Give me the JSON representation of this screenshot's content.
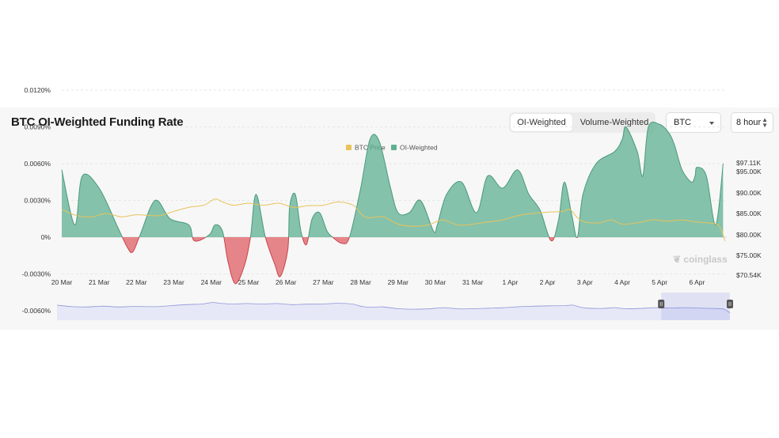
{
  "header": {
    "title": "BTC OI-Weighted Funding Rate",
    "toggle": [
      "OI-Weighted",
      "Volume-Weighted"
    ],
    "coin": "BTC",
    "interval": "8 hour"
  },
  "watermark": "coinglass",
  "colors": {
    "positive": "#5fb091",
    "negative": "#e0686d",
    "price": "#e8c35a",
    "navigator_fill": "#e6e8f7",
    "navigator_line": "#8f95d6"
  },
  "chart_data": {
    "type": "area",
    "legend": [
      {
        "name": "BTC Price",
        "color": "#e8c35a"
      },
      {
        "name": "OI-Weighted",
        "color": "#5fb091"
      }
    ],
    "x": [
      "20 Mar",
      "21 Mar",
      "22 Mar",
      "23 Mar",
      "24 Mar",
      "25 Mar",
      "26 Mar",
      "27 Mar",
      "28 Mar",
      "29 Mar",
      "30 Mar",
      "31 Mar",
      "1 Apr",
      "2 Apr",
      "3 Apr",
      "4 Apr",
      "5 Apr",
      "6 Apr"
    ],
    "y_left": {
      "ticks": [
        "0.0120%",
        "0.0090%",
        "0.0060%",
        "0.0030%",
        "0%",
        "-0.0030%",
        "-0.0060%"
      ],
      "range": [
        -0.006,
        0.012
      ],
      "unit": "%"
    },
    "y_right": {
      "ticks": [
        "$97.11K",
        "$95.00K",
        "$90.00K",
        "$85.00K",
        "$80.00K",
        "$75.00K",
        "$70.54K"
      ]
    },
    "series": [
      {
        "name": "OI-Weighted",
        "unit": "%",
        "points": [
          [
            0.0,
            0.0055
          ],
          [
            0.35,
            0.001
          ],
          [
            0.55,
            0.005
          ],
          [
            1.0,
            0.004
          ],
          [
            1.5,
            0.0008
          ],
          [
            1.75,
            -0.0008
          ],
          [
            1.9,
            -0.0012
          ],
          [
            2.1,
            0.0002
          ],
          [
            2.5,
            0.003
          ],
          [
            2.9,
            0.0015
          ],
          [
            3.4,
            0.001
          ],
          [
            3.55,
            -0.0003
          ],
          [
            3.95,
            0.0002
          ],
          [
            4.1,
            0.001
          ],
          [
            4.3,
            0.0005
          ],
          [
            4.45,
            -0.002
          ],
          [
            4.65,
            -0.0038
          ],
          [
            4.9,
            -0.0022
          ],
          [
            5.05,
            0.0
          ],
          [
            5.2,
            0.0035
          ],
          [
            5.45,
            0.0
          ],
          [
            5.7,
            -0.0022
          ],
          [
            5.85,
            -0.0032
          ],
          [
            6.05,
            -0.001
          ],
          [
            6.1,
            0.0025
          ],
          [
            6.25,
            0.0035
          ],
          [
            6.4,
            0.0005
          ],
          [
            6.55,
            -0.0006
          ],
          [
            6.7,
            0.0015
          ],
          [
            6.9,
            0.002
          ],
          [
            7.1,
            0.0005
          ],
          [
            7.25,
            0.0
          ],
          [
            7.5,
            -0.0005
          ],
          [
            7.7,
            0.0
          ],
          [
            8.0,
            0.004
          ],
          [
            8.25,
            0.008
          ],
          [
            8.5,
            0.0078
          ],
          [
            8.8,
            0.004
          ],
          [
            9.0,
            0.002
          ],
          [
            9.3,
            0.002
          ],
          [
            9.6,
            0.003
          ],
          [
            9.95,
            0.0005
          ],
          [
            10.05,
            0.001
          ],
          [
            10.3,
            0.0035
          ],
          [
            10.7,
            0.0045
          ],
          [
            11.1,
            0.002
          ],
          [
            11.4,
            0.005
          ],
          [
            11.8,
            0.004
          ],
          [
            12.2,
            0.0055
          ],
          [
            12.5,
            0.0035
          ],
          [
            12.8,
            0.0022
          ],
          [
            13.1,
            -0.0003
          ],
          [
            13.3,
            0.0015
          ],
          [
            13.45,
            0.0045
          ],
          [
            13.65,
            0.0018
          ],
          [
            13.8,
            0.0
          ],
          [
            13.95,
            0.0035
          ],
          [
            14.3,
            0.006
          ],
          [
            14.8,
            0.007
          ],
          [
            15.0,
            0.008
          ],
          [
            15.1,
            0.009
          ],
          [
            15.4,
            0.007
          ],
          [
            15.55,
            0.005
          ],
          [
            15.7,
            0.009
          ],
          [
            16.0,
            0.0092
          ],
          [
            16.25,
            0.0085
          ],
          [
            16.4,
            0.0075
          ],
          [
            16.6,
            0.0055
          ],
          [
            16.85,
            0.0045
          ],
          [
            16.95,
            0.005
          ],
          [
            17.0,
            0.0057
          ],
          [
            17.25,
            0.005
          ],
          [
            17.5,
            0.001
          ],
          [
            17.7,
            0.006
          ]
        ]
      },
      {
        "name": "BTC Price",
        "unit": "$K",
        "points": [
          [
            0.0,
            86.0
          ],
          [
            0.4,
            84.5
          ],
          [
            0.8,
            84.2
          ],
          [
            1.2,
            85.0
          ],
          [
            1.6,
            84.2
          ],
          [
            2.0,
            84.7
          ],
          [
            2.6,
            84.5
          ],
          [
            3.0,
            85.5
          ],
          [
            3.4,
            86.5
          ],
          [
            3.8,
            87.0
          ],
          [
            4.1,
            88.5
          ],
          [
            4.3,
            87.8
          ],
          [
            4.6,
            87.0
          ],
          [
            5.0,
            87.5
          ],
          [
            5.4,
            87.0
          ],
          [
            5.8,
            87.5
          ],
          [
            6.2,
            86.5
          ],
          [
            6.6,
            86.9
          ],
          [
            7.0,
            87.0
          ],
          [
            7.4,
            87.8
          ],
          [
            7.8,
            87.0
          ],
          [
            8.0,
            85.0
          ],
          [
            8.2,
            84.0
          ],
          [
            8.6,
            84.2
          ],
          [
            9.0,
            82.5
          ],
          [
            9.4,
            82.0
          ],
          [
            9.8,
            82.3
          ],
          [
            10.2,
            83.5
          ],
          [
            10.6,
            82.3
          ],
          [
            11.0,
            82.5
          ],
          [
            11.4,
            83.0
          ],
          [
            11.8,
            83.5
          ],
          [
            12.2,
            84.5
          ],
          [
            12.6,
            85.0
          ],
          [
            13.0,
            85.3
          ],
          [
            13.4,
            85.5
          ],
          [
            13.6,
            86.0
          ],
          [
            13.8,
            84.0
          ],
          [
            14.0,
            83.0
          ],
          [
            14.4,
            82.8
          ],
          [
            14.7,
            83.5
          ],
          [
            15.0,
            82.5
          ],
          [
            15.4,
            82.8
          ],
          [
            15.8,
            83.5
          ],
          [
            16.2,
            83.2
          ],
          [
            16.6,
            83.5
          ],
          [
            17.0,
            83.0
          ],
          [
            17.4,
            82.7
          ],
          [
            17.6,
            82.0
          ],
          [
            17.75,
            78.5
          ]
        ]
      }
    ],
    "navigator": {
      "selected_range": [
        "5 Apr",
        "6 Apr"
      ]
    },
    "grid": true,
    "legend_position": "top-center"
  }
}
